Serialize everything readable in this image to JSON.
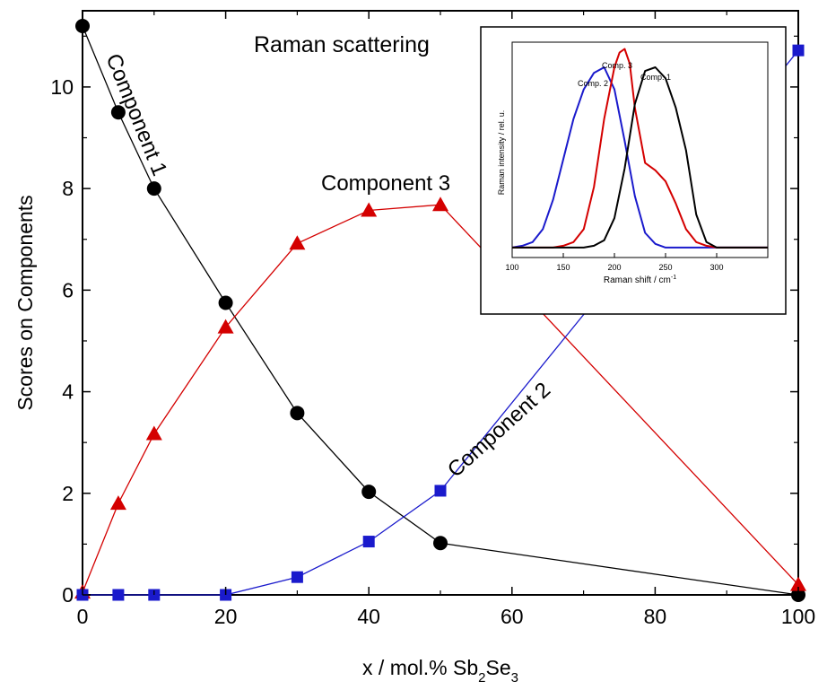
{
  "chart_data": [
    {
      "type": "line",
      "title": "Raman scattering",
      "xlabel_parts": {
        "main": "x / mol.% Sb",
        "sub1": "2",
        "mid": "Se",
        "sub2": "3"
      },
      "ylabel": "Scores on Components",
      "xlim": [
        0,
        100
      ],
      "ylim": [
        0,
        11.5
      ],
      "xticks": [
        0,
        20,
        40,
        60,
        80,
        100
      ],
      "yticks": [
        0,
        2,
        4,
        6,
        8,
        10
      ],
      "grid": false,
      "legend": "none",
      "series": [
        {
          "name": "Component 1",
          "color": "#000000",
          "marker": "circle",
          "x": [
            0,
            5,
            10,
            20,
            30,
            40,
            50,
            100
          ],
          "values": [
            11.2,
            9.5,
            8.0,
            5.75,
            3.58,
            2.03,
            1.02,
            0.0
          ]
        },
        {
          "name": "Component 3",
          "color": "#d40000",
          "marker": "triangle",
          "x": [
            0,
            5,
            10,
            20,
            30,
            40,
            50,
            100
          ],
          "values": [
            0.05,
            1.8,
            3.17,
            5.27,
            6.92,
            7.57,
            7.68,
            0.2
          ]
        },
        {
          "name": "Component 2",
          "color": "#1a1acc",
          "marker": "square",
          "x": [
            0,
            5,
            10,
            20,
            30,
            40,
            50,
            100
          ],
          "values": [
            0.0,
            0.0,
            0.0,
            0.0,
            0.35,
            1.05,
            2.05,
            10.72
          ]
        }
      ]
    },
    {
      "type": "line",
      "title": "",
      "xlabel_main": "Raman shift / cm",
      "xlabel_sup": "-1",
      "ylabel": "Raman intensity / rel. u.",
      "xlim": [
        100,
        350
      ],
      "xticks": [
        100,
        150,
        200,
        250,
        300
      ],
      "grid": false,
      "series": [
        {
          "name": "Comp. 2",
          "color": "#1a1acc",
          "x": [
            100,
            110,
            120,
            130,
            140,
            150,
            160,
            170,
            180,
            190,
            200,
            210,
            220,
            230,
            240,
            250,
            260,
            270,
            280,
            290,
            300,
            350
          ],
          "values": [
            0.02,
            0.03,
            0.05,
            0.12,
            0.28,
            0.5,
            0.72,
            0.88,
            0.97,
            1.0,
            0.88,
            0.6,
            0.3,
            0.1,
            0.04,
            0.02,
            0.02,
            0.02,
            0.02,
            0.02,
            0.02,
            0.02
          ]
        },
        {
          "name": "Comp. 3",
          "color": "#d40000",
          "x": [
            100,
            110,
            120,
            130,
            140,
            150,
            160,
            170,
            180,
            190,
            200,
            205,
            210,
            215,
            220,
            230,
            240,
            250,
            260,
            270,
            280,
            290,
            300,
            350
          ],
          "values": [
            0.02,
            0.02,
            0.02,
            0.02,
            0.02,
            0.03,
            0.05,
            0.12,
            0.35,
            0.72,
            1.0,
            1.08,
            1.1,
            1.02,
            0.78,
            0.48,
            0.44,
            0.38,
            0.26,
            0.12,
            0.05,
            0.03,
            0.02,
            0.02
          ]
        },
        {
          "name": "Comp. 1",
          "color": "#000000",
          "x": [
            100,
            150,
            170,
            180,
            190,
            200,
            210,
            220,
            230,
            240,
            250,
            260,
            270,
            280,
            290,
            300,
            350
          ],
          "values": [
            0.02,
            0.02,
            0.02,
            0.03,
            0.06,
            0.18,
            0.45,
            0.8,
            0.98,
            1.0,
            0.94,
            0.78,
            0.55,
            0.2,
            0.05,
            0.02,
            0.02
          ]
        }
      ]
    }
  ]
}
